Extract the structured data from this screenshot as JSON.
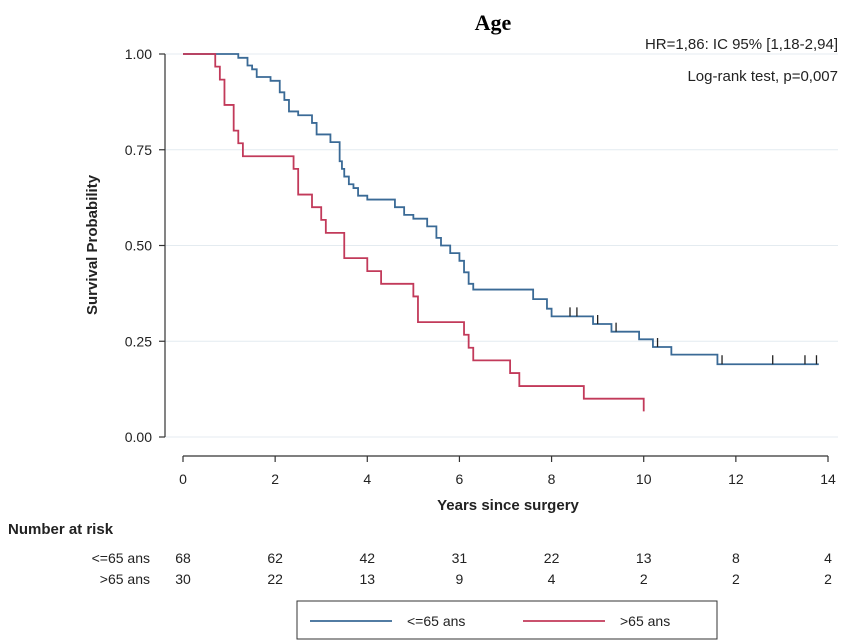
{
  "chart_data": {
    "type": "line",
    "title": "Age",
    "xlabel": "Years since surgery",
    "ylabel": "Survival Probability",
    "xlim": [
      0,
      14
    ],
    "ylim": [
      0,
      1
    ],
    "x_ticks": [
      0,
      2,
      4,
      6,
      8,
      10,
      12,
      14
    ],
    "y_ticks": [
      0,
      0.25,
      0.5,
      0.75,
      1
    ],
    "x_tick_labels": [
      "0",
      "2",
      "4",
      "6",
      "8",
      "10",
      "12",
      "14"
    ],
    "y_tick_labels": [
      "0.00",
      "0.25",
      "0.50",
      "0.75",
      "1.00"
    ],
    "grid": "horizontal",
    "annotations": [
      "HR=1,86: IC 95% [1,18-2,94]",
      "Log-rank test, p=0,007"
    ],
    "legend_position": "bottom",
    "series": [
      {
        "name": "<=65 ans",
        "color": "#3a6a96",
        "steps": [
          [
            0,
            1
          ],
          [
            1.2,
            0.99
          ],
          [
            1.4,
            0.97
          ],
          [
            1.5,
            0.96
          ],
          [
            1.6,
            0.94
          ],
          [
            1.9,
            0.93
          ],
          [
            2.1,
            0.9
          ],
          [
            2.2,
            0.88
          ],
          [
            2.3,
            0.85
          ],
          [
            2.5,
            0.84
          ],
          [
            2.8,
            0.82
          ],
          [
            2.9,
            0.79
          ],
          [
            3,
            0.79
          ],
          [
            3.2,
            0.77
          ],
          [
            3.4,
            0.72
          ],
          [
            3.45,
            0.7
          ],
          [
            3.5,
            0.68
          ],
          [
            3.6,
            0.66
          ],
          [
            3.7,
            0.65
          ],
          [
            3.8,
            0.63
          ],
          [
            4,
            0.62
          ],
          [
            4.6,
            0.6
          ],
          [
            4.8,
            0.58
          ],
          [
            5,
            0.57
          ],
          [
            5.3,
            0.55
          ],
          [
            5.5,
            0.52
          ],
          [
            5.6,
            0.5
          ],
          [
            5.8,
            0.48
          ],
          [
            6,
            0.46
          ],
          [
            6.1,
            0.43
          ],
          [
            6.2,
            0.4
          ],
          [
            6.3,
            0.385
          ],
          [
            7.6,
            0.36
          ],
          [
            7.9,
            0.335
          ],
          [
            8,
            0.315
          ],
          [
            8.9,
            0.295
          ],
          [
            9.3,
            0.275
          ],
          [
            9.9,
            0.255
          ],
          [
            10.2,
            0.235
          ],
          [
            10.6,
            0.215
          ],
          [
            11.6,
            0.19
          ],
          [
            13.8,
            0.19
          ]
        ],
        "censor_x": [
          8.4,
          8.55,
          9.0,
          9.4,
          10.3,
          11.7,
          12.8,
          13.5,
          13.75
        ]
      },
      {
        "name": ">65 ans",
        "color": "#c23a5a",
        "steps": [
          [
            0,
            1
          ],
          [
            0.7,
            0.967
          ],
          [
            0.8,
            0.933
          ],
          [
            0.9,
            0.867
          ],
          [
            1.1,
            0.8
          ],
          [
            1.2,
            0.767
          ],
          [
            1.3,
            0.733
          ],
          [
            2.4,
            0.7
          ],
          [
            2.5,
            0.633
          ],
          [
            2.8,
            0.6
          ],
          [
            3,
            0.567
          ],
          [
            3.1,
            0.533
          ],
          [
            3.5,
            0.467
          ],
          [
            4,
            0.433
          ],
          [
            4.3,
            0.4
          ],
          [
            5,
            0.367
          ],
          [
            5.1,
            0.3
          ],
          [
            6.1,
            0.267
          ],
          [
            6.2,
            0.233
          ],
          [
            6.3,
            0.2
          ],
          [
            7.1,
            0.167
          ],
          [
            7.3,
            0.133
          ],
          [
            8.7,
            0.1
          ],
          [
            10,
            0.067
          ]
        ],
        "censor_x": []
      }
    ],
    "risk_table": {
      "title": "Number at risk",
      "times": [
        0,
        2,
        4,
        6,
        8,
        10,
        12,
        14
      ],
      "rows": [
        {
          "label": "<=65 ans",
          "values": [
            68,
            62,
            42,
            31,
            22,
            13,
            8,
            4
          ]
        },
        {
          "label": ">65 ans",
          "values": [
            30,
            22,
            13,
            9,
            4,
            2,
            2,
            2
          ]
        }
      ]
    }
  }
}
